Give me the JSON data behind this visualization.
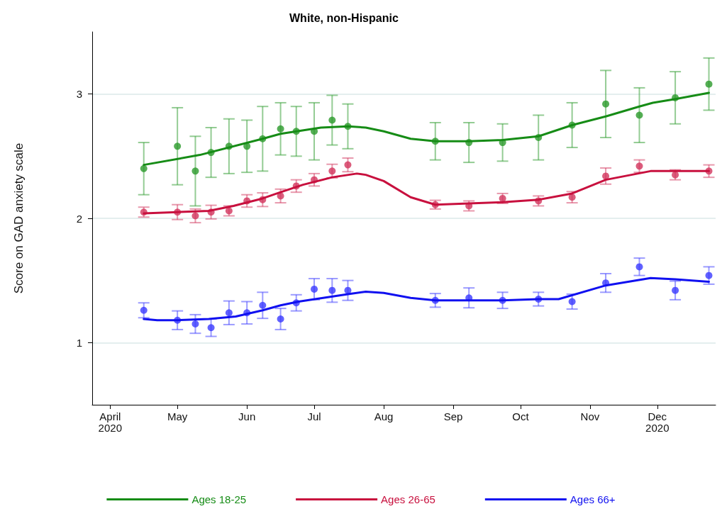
{
  "chart_data": {
    "type": "scatter",
    "title": "White, non-Hispanic",
    "ylabel": "Score on GAD anxiety scale",
    "xlim": [
      "2020-03-24",
      "2020-12-27"
    ],
    "xticks": [
      {
        "value": "2020-04-01",
        "label": "April\n2020"
      },
      {
        "value": "2020-05-01",
        "label": "May"
      },
      {
        "value": "2020-06-01",
        "label": "Jun"
      },
      {
        "value": "2020-07-01",
        "label": "Jul"
      },
      {
        "value": "2020-08-01",
        "label": "Aug"
      },
      {
        "value": "2020-09-01",
        "label": "Sep"
      },
      {
        "value": "2020-10-01",
        "label": "Oct"
      },
      {
        "value": "2020-11-01",
        "label": "Nov"
      },
      {
        "value": "2020-12-01",
        "label": "Dec\n2020"
      }
    ],
    "ylim": [
      0.5,
      3.5
    ],
    "yticks": [
      1,
      2,
      3
    ],
    "grid": "y",
    "legend": "bottom",
    "marker": "circle",
    "series": [
      {
        "color": "#2a9a2a",
        "x": [
          "2020-04-16",
          "2020-05-01",
          "2020-05-09",
          "2020-05-16",
          "2020-05-24",
          "2020-06-01",
          "2020-06-08",
          "2020-06-16",
          "2020-06-23",
          "2020-07-01",
          "2020-07-09",
          "2020-07-16",
          "2020-08-24",
          "2020-09-08",
          "2020-09-23",
          "2020-10-09",
          "2020-10-24",
          "2020-11-08",
          "2020-11-23",
          "2020-12-09",
          "2020-12-24"
        ],
        "values": [
          2.4,
          2.58,
          2.38,
          2.53,
          2.58,
          2.58,
          2.64,
          2.72,
          2.7,
          2.7,
          2.79,
          2.74,
          2.62,
          2.61,
          2.61,
          2.65,
          2.75,
          2.92,
          2.83,
          2.97,
          3.08
        ],
        "errors": [
          0.21,
          0.31,
          0.28,
          0.2,
          0.22,
          0.21,
          0.26,
          0.21,
          0.2,
          0.23,
          0.2,
          0.18,
          0.15,
          0.16,
          0.15,
          0.18,
          0.18,
          0.27,
          0.22,
          0.21,
          0.21
        ]
      },
      {
        "color": "#d2345c",
        "x": [
          "2020-04-16",
          "2020-05-01",
          "2020-05-09",
          "2020-05-16",
          "2020-05-24",
          "2020-06-01",
          "2020-06-08",
          "2020-06-16",
          "2020-06-23",
          "2020-07-01",
          "2020-07-09",
          "2020-07-16",
          "2020-08-24",
          "2020-09-08",
          "2020-09-23",
          "2020-10-09",
          "2020-10-24",
          "2020-11-08",
          "2020-11-23",
          "2020-12-09",
          "2020-12-24"
        ],
        "values": [
          2.05,
          2.05,
          2.02,
          2.05,
          2.06,
          2.14,
          2.15,
          2.18,
          2.26,
          2.31,
          2.38,
          2.43,
          2.11,
          2.1,
          2.16,
          2.14,
          2.17,
          2.34,
          2.42,
          2.35,
          2.38
        ],
        "errors": [
          0.04,
          0.06,
          0.055,
          0.055,
          0.04,
          0.05,
          0.055,
          0.055,
          0.05,
          0.05,
          0.055,
          0.055,
          0.035,
          0.04,
          0.04,
          0.04,
          0.045,
          0.065,
          0.05,
          0.04,
          0.05
        ]
      },
      {
        "color": "#3a3aff",
        "x": [
          "2020-04-16",
          "2020-05-01",
          "2020-05-09",
          "2020-05-16",
          "2020-05-24",
          "2020-06-01",
          "2020-06-08",
          "2020-06-16",
          "2020-06-23",
          "2020-07-01",
          "2020-07-09",
          "2020-07-16",
          "2020-08-24",
          "2020-09-08",
          "2020-09-23",
          "2020-10-09",
          "2020-10-24",
          "2020-11-08",
          "2020-11-23",
          "2020-12-09",
          "2020-12-24"
        ],
        "values": [
          1.26,
          1.18,
          1.15,
          1.12,
          1.24,
          1.24,
          1.3,
          1.19,
          1.32,
          1.43,
          1.42,
          1.42,
          1.34,
          1.36,
          1.34,
          1.35,
          1.33,
          1.48,
          1.61,
          1.42,
          1.54
        ],
        "errors": [
          0.06,
          0.075,
          0.075,
          0.07,
          0.095,
          0.09,
          0.105,
          0.085,
          0.065,
          0.085,
          0.095,
          0.08,
          0.055,
          0.08,
          0.065,
          0.055,
          0.06,
          0.075,
          0.07,
          0.075,
          0.07
        ]
      },
      {
        "type": "line",
        "name": "Ages 18-25",
        "marker": "none",
        "color": "#168c16",
        "x": [
          "2020-04-16",
          "2020-05-11",
          "2020-06-08",
          "2020-06-16",
          "2020-07-04",
          "2020-07-16",
          "2020-07-24",
          "2020-08-01",
          "2020-08-13",
          "2020-08-24",
          "2020-09-08",
          "2020-09-23",
          "2020-10-09",
          "2020-10-24",
          "2020-11-08",
          "2020-11-23",
          "2020-11-29",
          "2020-12-09",
          "2020-12-24"
        ],
        "values": [
          2.43,
          2.51,
          2.64,
          2.68,
          2.73,
          2.74,
          2.73,
          2.7,
          2.64,
          2.62,
          2.62,
          2.63,
          2.66,
          2.75,
          2.82,
          2.9,
          2.93,
          2.96,
          3.01
        ]
      },
      {
        "type": "line",
        "name": "Ages 26-65",
        "marker": "none",
        "color": "#c8103e",
        "x": [
          "2020-04-16",
          "2020-05-01",
          "2020-05-15",
          "2020-05-26",
          "2020-06-08",
          "2020-06-16",
          "2020-06-26",
          "2020-07-09",
          "2020-07-20",
          "2020-07-24",
          "2020-08-01",
          "2020-08-13",
          "2020-08-24",
          "2020-09-08",
          "2020-09-23",
          "2020-10-09",
          "2020-10-24",
          "2020-11-08",
          "2020-11-28",
          "2020-12-24"
        ],
        "values": [
          2.04,
          2.05,
          2.06,
          2.1,
          2.16,
          2.21,
          2.27,
          2.33,
          2.36,
          2.35,
          2.3,
          2.17,
          2.11,
          2.12,
          2.13,
          2.15,
          2.2,
          2.31,
          2.38,
          2.38
        ]
      },
      {
        "type": "line",
        "name": "Ages 66+",
        "marker": "none",
        "color": "#1010f0",
        "x": [
          "2020-04-16",
          "2020-04-22",
          "2020-05-01",
          "2020-05-15",
          "2020-05-27",
          "2020-06-08",
          "2020-06-16",
          "2020-06-24",
          "2020-07-16",
          "2020-07-24",
          "2020-08-01",
          "2020-08-13",
          "2020-08-24",
          "2020-09-23",
          "2020-10-09",
          "2020-10-18",
          "2020-11-08",
          "2020-11-28",
          "2020-12-09",
          "2020-12-24"
        ],
        "values": [
          1.19,
          1.18,
          1.18,
          1.19,
          1.21,
          1.26,
          1.3,
          1.33,
          1.39,
          1.41,
          1.4,
          1.36,
          1.34,
          1.34,
          1.35,
          1.35,
          1.46,
          1.52,
          1.51,
          1.49
        ]
      }
    ]
  }
}
